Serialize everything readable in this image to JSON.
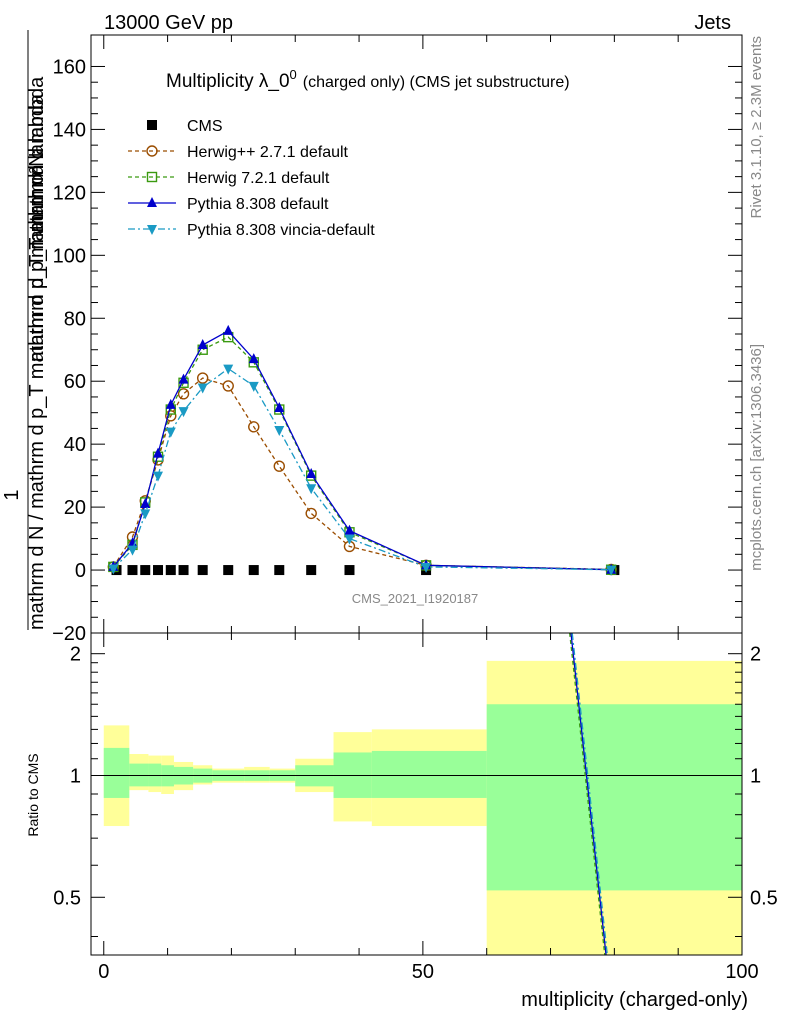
{
  "header": {
    "left": "13000 GeV pp",
    "right": "Jets"
  },
  "side_labels": {
    "rivet": "Rivet 3.1.10, ≥ 2.3M events",
    "mcplots": "mcplots.cern.ch [arXiv:1306.3436]"
  },
  "watermark": "CMS_2021_I1920187",
  "chart_data": [
    {
      "type": "line",
      "title": "Multiplicity λ_0",
      "title_sup": "0",
      "title_suffix": "(charged only) (CMS jet substructure)",
      "xlabel": "multiplicity (charged-only)",
      "ylabel_top": "1",
      "ylabel_main": "mathrm d N / mathrm d p_T mathrm d p_T mathrm d lambda",
      "ylabel_frac_top": "mathrm d²N",
      "ylabel_frac_bot": "mathrm d p_T mathrm d lambda",
      "xlim": [
        -2,
        100
      ],
      "ylim": [
        -20,
        170
      ],
      "y_ticks": [
        -20,
        0,
        20,
        40,
        60,
        80,
        100,
        120,
        140,
        160
      ],
      "y_tick_labels": [
        "−20",
        "0",
        "20",
        "40",
        "60",
        "80",
        "100",
        "120",
        "140",
        "160"
      ],
      "x_ticks": [
        0,
        50,
        100
      ],
      "x_tick_labels": [
        "0",
        "50",
        "100"
      ],
      "series": [
        {
          "name": "CMS",
          "color": "#000000",
          "marker": "square-filled",
          "x": [
            2,
            4.5,
            6.5,
            8.5,
            10.5,
            12.5,
            15.5,
            19.5,
            23.5,
            27.5,
            32.5,
            38.5,
            50.5,
            80
          ],
          "y": [
            0,
            0,
            0,
            0,
            0,
            0,
            0,
            0,
            0,
            0,
            0,
            0,
            0,
            0
          ]
        },
        {
          "name": "Herwig++ 2.7.1 default",
          "color": "#9a4d00",
          "marker": "circle-open",
          "x": [
            1.5,
            4.5,
            6.5,
            8.5,
            10.5,
            12.5,
            15.5,
            19.5,
            23.5,
            27.5,
            32.5,
            38.5,
            50.5,
            79.5
          ],
          "y": [
            1.0,
            10.5,
            22.0,
            35.0,
            49.0,
            56.0,
            61.0,
            58.5,
            45.5,
            33.0,
            18.0,
            7.5,
            1.5,
            0.2
          ]
        },
        {
          "name": "Herwig 7.2.1 default",
          "color": "#3a9a10",
          "marker": "square-open",
          "x": [
            1.5,
            4.5,
            6.5,
            8.5,
            10.5,
            12.5,
            15.5,
            19.5,
            23.5,
            27.5,
            32.5,
            38.5,
            50.5,
            79.5
          ],
          "y": [
            1.0,
            8.0,
            21.5,
            36.0,
            51.0,
            59.5,
            70.0,
            74.0,
            66.0,
            51.0,
            30.0,
            12.0,
            1.5,
            0.1
          ]
        },
        {
          "name": "Pythia 8.308 default",
          "color": "#0000cc",
          "marker": "triangle-up-filled",
          "x": [
            1.5,
            4.5,
            6.5,
            8.5,
            10.5,
            12.5,
            15.5,
            19.5,
            23.5,
            27.5,
            32.5,
            38.5,
            50.5,
            79.5
          ],
          "y": [
            1.0,
            8.5,
            21.0,
            37.0,
            52.5,
            60.5,
            71.5,
            76.0,
            67.0,
            51.5,
            30.5,
            12.5,
            1.5,
            0.1
          ]
        },
        {
          "name": "Pythia 8.308 vincia-default",
          "color": "#1a9ac4",
          "marker": "triangle-down-filled",
          "x": [
            1.5,
            4.5,
            6.5,
            8.5,
            10.5,
            12.5,
            15.5,
            19.5,
            23.5,
            27.5,
            32.5,
            38.5,
            50.5,
            79.5
          ],
          "y": [
            0.5,
            6.5,
            18.0,
            30.0,
            44.0,
            50.5,
            58.0,
            64.0,
            58.5,
            44.5,
            26.0,
            10.0,
            1.0,
            0.1
          ]
        }
      ]
    },
    {
      "type": "area",
      "ylabel": "Ratio to CMS",
      "xlim": [
        -2,
        100
      ],
      "ylim": [
        0.36,
        2.25
      ],
      "y_scale": "log",
      "y_ticks": [
        0.5,
        1,
        2
      ],
      "y_tick_labels": [
        "0.5",
        "1",
        "2"
      ],
      "reference_line": 1,
      "bands": [
        {
          "x0": 0,
          "x1": 4,
          "inner": [
            0.88,
            1.17
          ],
          "outer": [
            0.75,
            1.33
          ]
        },
        {
          "x0": 4,
          "x1": 7,
          "inner": [
            0.94,
            1.07
          ],
          "outer": [
            0.92,
            1.13
          ]
        },
        {
          "x0": 7,
          "x1": 9,
          "inner": [
            0.94,
            1.07
          ],
          "outer": [
            0.91,
            1.12
          ]
        },
        {
          "x0": 9,
          "x1": 11,
          "inner": [
            0.94,
            1.06
          ],
          "outer": [
            0.9,
            1.12
          ]
        },
        {
          "x0": 11,
          "x1": 14,
          "inner": [
            0.95,
            1.05
          ],
          "outer": [
            0.92,
            1.08
          ]
        },
        {
          "x0": 14,
          "x1": 17,
          "inner": [
            0.96,
            1.04
          ],
          "outer": [
            0.95,
            1.06
          ]
        },
        {
          "x0": 17,
          "x1": 22,
          "inner": [
            0.97,
            1.03
          ],
          "outer": [
            0.96,
            1.04
          ]
        },
        {
          "x0": 22,
          "x1": 26,
          "inner": [
            0.97,
            1.03
          ],
          "outer": [
            0.96,
            1.05
          ]
        },
        {
          "x0": 26,
          "x1": 30,
          "inner": [
            0.97,
            1.03
          ],
          "outer": [
            0.96,
            1.04
          ]
        },
        {
          "x0": 30,
          "x1": 36,
          "inner": [
            0.94,
            1.06
          ],
          "outer": [
            0.91,
            1.1
          ]
        },
        {
          "x0": 36,
          "x1": 42,
          "inner": [
            0.88,
            1.14
          ],
          "outer": [
            0.77,
            1.28
          ]
        },
        {
          "x0": 42,
          "x1": 60,
          "inner": [
            0.88,
            1.15
          ],
          "outer": [
            0.75,
            1.3
          ]
        },
        {
          "x0": 60,
          "x1": 100,
          "inner": [
            0.52,
            1.5
          ],
          "outer": [
            0.36,
            1.92
          ]
        }
      ],
      "series": [
        {
          "name": "Pythia 8.308 default",
          "color": "#0000cc",
          "x": [
            73.2,
            78.7
          ],
          "y": [
            2.25,
            0.36
          ]
        },
        {
          "name": "Herwig 7.2.1 default",
          "color": "#3a9a10",
          "x": [
            73.0,
            78.5
          ],
          "y": [
            2.25,
            0.36
          ]
        },
        {
          "name": "Pythia 8.308 vincia-default",
          "color": "#1a9ac4",
          "x": [
            73.4,
            78.9
          ],
          "y": [
            2.25,
            0.36
          ]
        }
      ]
    }
  ]
}
